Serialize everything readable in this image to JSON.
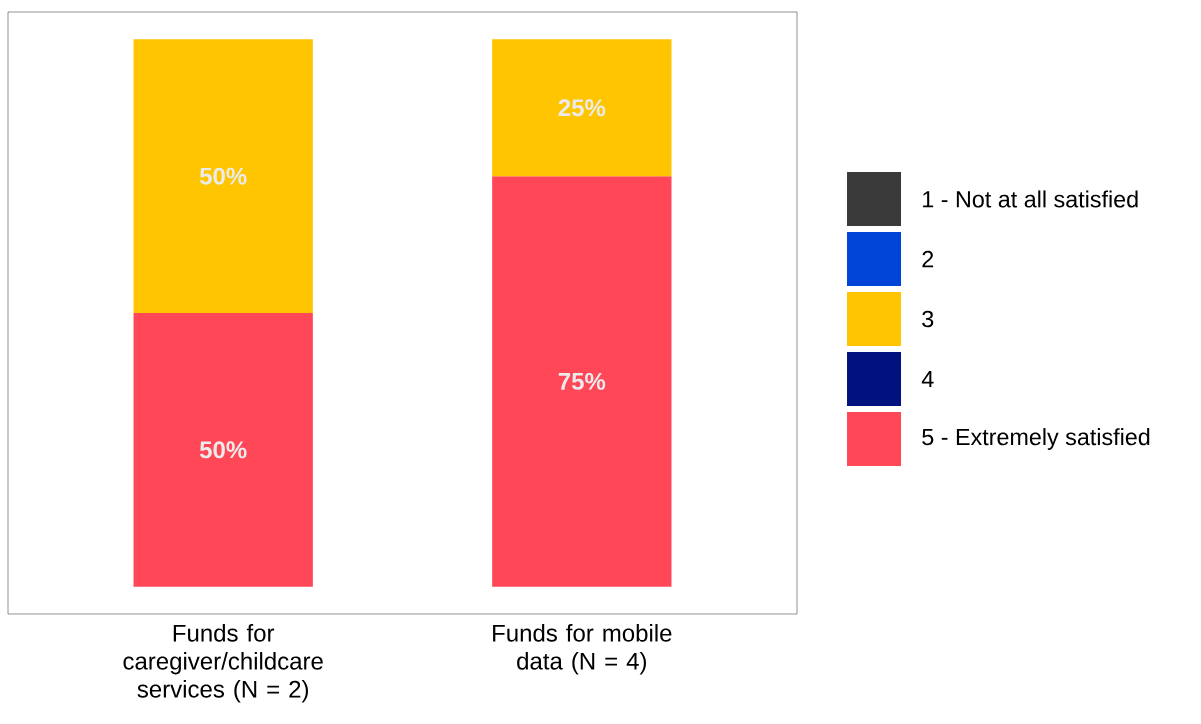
{
  "chart_data": {
    "type": "bar",
    "stacked": true,
    "categories": [
      "Funds for caregiver/childcare services (N = 2)",
      "Funds for mobile data (N = 4)"
    ],
    "ylim": [
      -5,
      105
    ],
    "tick_labels": "x",
    "legend": "right",
    "series": [
      {
        "name": "5 - Extremely satisfied",
        "color": "#ff4757",
        "values": [
          50,
          75
        ],
        "value_labels": [
          "50%",
          "75%"
        ]
      },
      {
        "name": "4",
        "color": "#00127e",
        "values": [
          null,
          null
        ]
      },
      {
        "name": "3",
        "color": "#ffc500",
        "values": [
          50,
          25
        ],
        "value_labels": [
          "50%",
          "25%"
        ]
      },
      {
        "name": "2",
        "color": "#0044d8",
        "values": [
          null,
          null
        ]
      },
      {
        "name": "1 - Not at all satisfied",
        "color": "#3a3a3a",
        "values": [
          null,
          null
        ]
      }
    ]
  }
}
